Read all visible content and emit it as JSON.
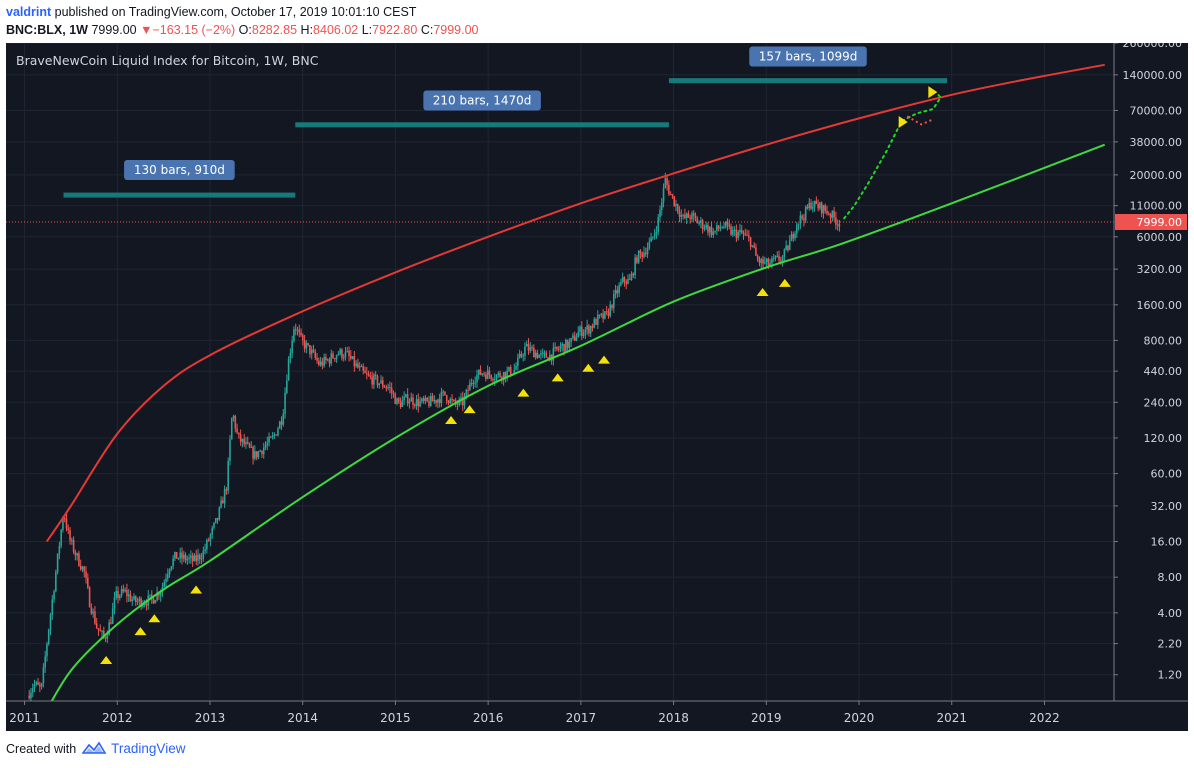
{
  "header": {
    "author": "valdrint",
    "published_text": "published on TradingView.com, October 17, 2019 10:01:10 CEST",
    "symbol": "BNC:BLX, 1W",
    "price": "7999.00",
    "down_arrow": "▼",
    "change": "−163.15 (−2%)",
    "o_label": "O:",
    "o_value": "8282.85",
    "h_label": "H:",
    "h_value": "8406.02",
    "l_label": "L:",
    "l_value": "7922.80",
    "c_label": "C:",
    "c_value": "7999.00"
  },
  "footer": {
    "created_with": "Created with",
    "brand": "TradingView",
    "logo_icon": "tradingview-logo-icon"
  },
  "colors": {
    "background": "#131722",
    "grid": "#1f2532",
    "up": "#26a69a",
    "down": "#ef5350",
    "upper_curve": "#e53935",
    "lower_curve": "#3fd93f",
    "projection": "#1fd91f",
    "range_bar": "#177a7a",
    "range_label_bg": "#4a74b0",
    "marker": "#f5e10a"
  },
  "chart_data": {
    "type": "candlestick",
    "title": "BraveNewCoin Liquid Index for Bitcoin, 1W, BNC",
    "yscale": "log",
    "ylim": [
      0.72,
      260000
    ],
    "xlim": [
      2010.8,
      2022.75
    ],
    "y_ticks": [
      "260000.00",
      "140000.00",
      "70000.00",
      "38000.00",
      "20000.00",
      "11000.00",
      "6000.00",
      "3200.00",
      "1600.00",
      "800.00",
      "440.00",
      "240.00",
      "120.00",
      "60.00",
      "32.00",
      "16.00",
      "8.00",
      "4.00",
      "2.20",
      "1.20"
    ],
    "x_ticks": [
      "2011",
      "2012",
      "2013",
      "2014",
      "2015",
      "2016",
      "2017",
      "2018",
      "2019",
      "2020",
      "2021",
      "2022"
    ],
    "last_price": {
      "label": "7999.00",
      "value": 7999
    },
    "price_path": [
      [
        2011.05,
        0.8
      ],
      [
        2011.12,
        1.0
      ],
      [
        2011.2,
        0.9
      ],
      [
        2011.28,
        3.0
      ],
      [
        2011.35,
        8.0
      ],
      [
        2011.44,
        29.0
      ],
      [
        2011.5,
        17.0
      ],
      [
        2011.58,
        12.0
      ],
      [
        2011.66,
        9.0
      ],
      [
        2011.72,
        5.0
      ],
      [
        2011.8,
        3.0
      ],
      [
        2011.88,
        2.4
      ],
      [
        2011.95,
        3.5
      ],
      [
        2012.0,
        5.5
      ],
      [
        2012.1,
        6.0
      ],
      [
        2012.2,
        5.0
      ],
      [
        2012.3,
        5.0
      ],
      [
        2012.4,
        5.2
      ],
      [
        2012.5,
        6.5
      ],
      [
        2012.58,
        10.0
      ],
      [
        2012.65,
        12.0
      ],
      [
        2012.75,
        11.5
      ],
      [
        2012.85,
        11.0
      ],
      [
        2012.95,
        13.0
      ],
      [
        2013.1,
        25.0
      ],
      [
        2013.2,
        48.0
      ],
      [
        2013.26,
        200.0
      ],
      [
        2013.32,
        120.0
      ],
      [
        2013.42,
        100.0
      ],
      [
        2013.5,
        85.0
      ],
      [
        2013.6,
        100.0
      ],
      [
        2013.7,
        120.0
      ],
      [
        2013.8,
        180.0
      ],
      [
        2013.86,
        500.0
      ],
      [
        2013.93,
        1100.0
      ],
      [
        2014.0,
        800.0
      ],
      [
        2014.1,
        650.0
      ],
      [
        2014.2,
        500.0
      ],
      [
        2014.3,
        550.0
      ],
      [
        2014.4,
        630.0
      ],
      [
        2014.5,
        600.0
      ],
      [
        2014.58,
        500.0
      ],
      [
        2014.7,
        400.0
      ],
      [
        2014.85,
        350.0
      ],
      [
        2014.95,
        320.0
      ],
      [
        2015.05,
        230.0
      ],
      [
        2015.15,
        260.0
      ],
      [
        2015.25,
        240.0
      ],
      [
        2015.35,
        235.0
      ],
      [
        2015.45,
        250.0
      ],
      [
        2015.55,
        280.0
      ],
      [
        2015.65,
        230.0
      ],
      [
        2015.75,
        240.0
      ],
      [
        2015.85,
        380.0
      ],
      [
        2015.95,
        430.0
      ],
      [
        2016.1,
        400.0
      ],
      [
        2016.2,
        420.0
      ],
      [
        2016.3,
        450.0
      ],
      [
        2016.42,
        700.0
      ],
      [
        2016.5,
        650.0
      ],
      [
        2016.6,
        580.0
      ],
      [
        2016.7,
        600.0
      ],
      [
        2016.8,
        700.0
      ],
      [
        2016.9,
        750.0
      ],
      [
        2017.0,
        950.0
      ],
      [
        2017.1,
        1000.0
      ],
      [
        2017.2,
        1200.0
      ],
      [
        2017.3,
        1300.0
      ],
      [
        2017.4,
        2000.0
      ],
      [
        2017.48,
        2600.0
      ],
      [
        2017.55,
        2500.0
      ],
      [
        2017.62,
        4000.0
      ],
      [
        2017.7,
        4500.0
      ],
      [
        2017.78,
        5500.0
      ],
      [
        2017.85,
        8000.0
      ],
      [
        2017.93,
        18000.0
      ],
      [
        2017.98,
        14000.0
      ],
      [
        2018.05,
        11000.0
      ],
      [
        2018.12,
        8500.0
      ],
      [
        2018.2,
        9000.0
      ],
      [
        2018.28,
        8000.0
      ],
      [
        2018.35,
        7500.0
      ],
      [
        2018.45,
        6500.0
      ],
      [
        2018.55,
        7500.0
      ],
      [
        2018.65,
        6500.0
      ],
      [
        2018.75,
        6400.0
      ],
      [
        2018.85,
        5500.0
      ],
      [
        2018.92,
        3800.0
      ],
      [
        2018.98,
        3600.0
      ],
      [
        2019.05,
        3500.0
      ],
      [
        2019.12,
        3800.0
      ],
      [
        2019.2,
        4000.0
      ],
      [
        2019.28,
        5500.0
      ],
      [
        2019.35,
        8000.0
      ],
      [
        2019.42,
        9000.0
      ],
      [
        2019.5,
        11500.0
      ],
      [
        2019.55,
        11000.0
      ],
      [
        2019.62,
        10500.0
      ],
      [
        2019.7,
        9500.0
      ],
      [
        2019.79,
        8000.0
      ]
    ],
    "upper_curve": {
      "x": [
        2011.24,
        2011.5,
        2012.0,
        2012.5,
        2013.0,
        2013.9,
        2015.0,
        2016.0,
        2017.0,
        2017.95,
        2019.0,
        2020.0,
        2021.0,
        2021.8,
        2022.65
      ],
      "y": [
        16,
        32,
        130,
        330,
        600,
        1300,
        3000,
        6000,
        11500,
        20000,
        36000,
        60000,
        95000,
        128000,
        170000
      ]
    },
    "lower_curve": {
      "x": [
        2011.15,
        2011.5,
        2012.0,
        2012.5,
        2013.0,
        2014.0,
        2015.0,
        2016.0,
        2017.0,
        2018.0,
        2019.0,
        2019.8,
        2021.0,
        2022.65
      ],
      "y": [
        0.45,
        1.3,
        3.2,
        6.3,
        11,
        38,
        120,
        330,
        720,
        1700,
        3300,
        5200,
        11500,
        36000
      ]
    },
    "projection": {
      "x": [
        2019.84,
        2019.95,
        2020.1,
        2020.3,
        2020.46,
        2020.62,
        2020.8,
        2020.88,
        2020.83
      ],
      "y": [
        8600,
        11000,
        17000,
        32000,
        57000,
        66000,
        72000,
        90000,
        100000
      ]
    },
    "markers": [
      {
        "x": 2011.88,
        "y": 1.6
      },
      {
        "x": 2012.25,
        "y": 2.8
      },
      {
        "x": 2012.4,
        "y": 3.6
      },
      {
        "x": 2012.85,
        "y": 6.3
      },
      {
        "x": 2015.6,
        "y": 170
      },
      {
        "x": 2015.8,
        "y": 210
      },
      {
        "x": 2016.38,
        "y": 290
      },
      {
        "x": 2016.75,
        "y": 390
      },
      {
        "x": 2017.08,
        "y": 470
      },
      {
        "x": 2017.25,
        "y": 550
      },
      {
        "x": 2018.96,
        "y": 2050
      },
      {
        "x": 2019.2,
        "y": 2450
      }
    ],
    "projection_markers": [
      {
        "x": 2020.46,
        "y": 56000
      },
      {
        "x": 2020.78,
        "y": 100000
      }
    ],
    "date_ranges": [
      {
        "label": "130 bars, 910d",
        "x0": 2011.42,
        "x1": 2013.92,
        "y": 13500,
        "label_y": 22000
      },
      {
        "label": "210 bars, 1470d",
        "x0": 2013.92,
        "x1": 2017.95,
        "y": 53000,
        "label_y": 85000
      },
      {
        "label": "157 bars, 1099d",
        "x0": 2017.95,
        "x1": 2020.95,
        "y": 125000,
        "label_y": 200000
      }
    ]
  }
}
